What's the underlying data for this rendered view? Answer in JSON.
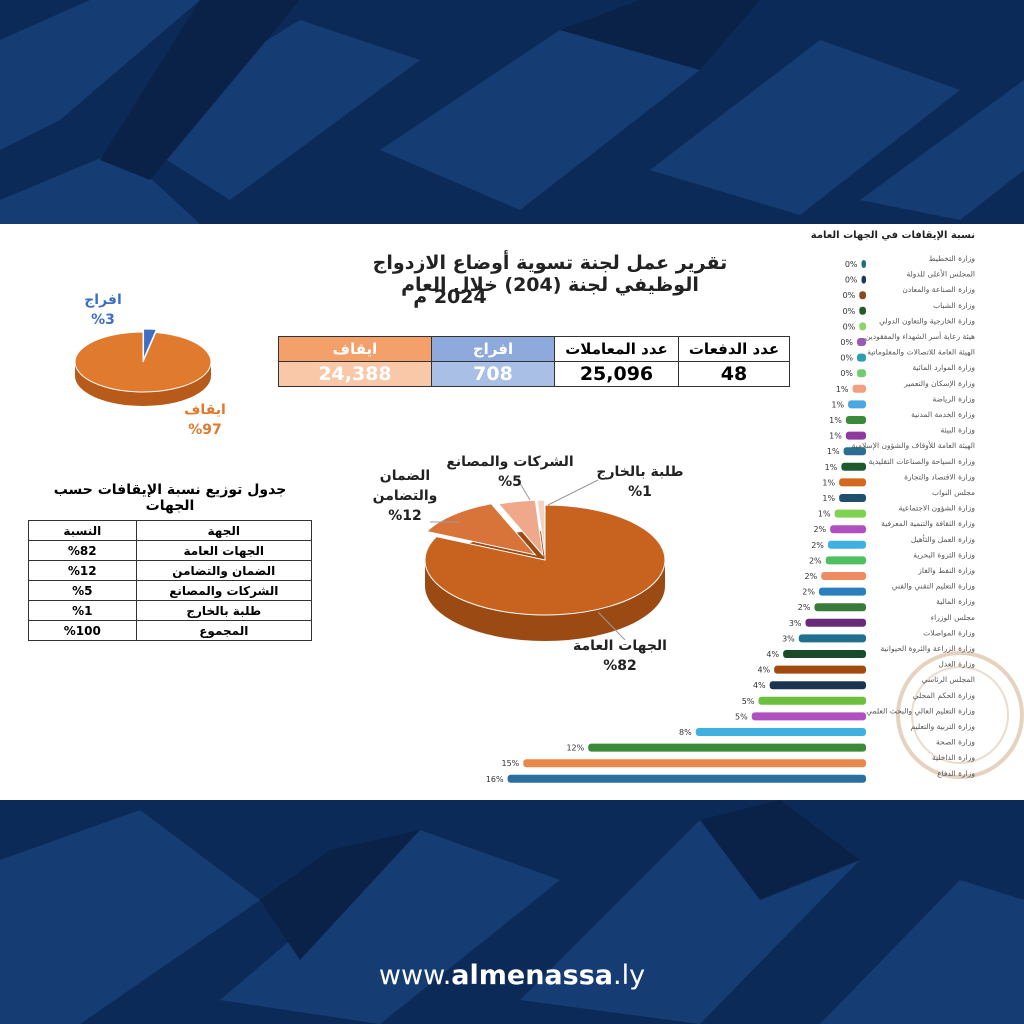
{
  "header": {
    "title_line1": "تقرير عمل لجنة تسوية أوضاع الازدواج الوظيفي لجنة (204) خلال العام",
    "title_line2": "2024 م"
  },
  "summary_table": {
    "headers": [
      "عدد الدفعات",
      "عدد المعاملات",
      "افراج",
      "ايقاف"
    ],
    "values": [
      "48",
      "25,096",
      "708",
      "24,388"
    ]
  },
  "distribution_table": {
    "title": "جدول توزيع نسبة الإيقافات حسب الجهات",
    "headers": [
      "الجهة",
      "النسبة"
    ],
    "rows": [
      [
        "الجهات العامة",
        "%82"
      ],
      [
        "الضمان والتضامن",
        "%12"
      ],
      [
        "الشركات والمصانع",
        "%5"
      ],
      [
        "طلبة بالخارج",
        "%1"
      ],
      [
        "المجموع",
        "%100"
      ]
    ]
  },
  "chart_data": [
    {
      "type": "pie",
      "categories": [
        "افراج",
        "ايقاف"
      ],
      "values": [
        3,
        97
      ],
      "value_labels": [
        "%3",
        "%97"
      ],
      "colors": [
        "#3f6fc4",
        "#e07a2e"
      ],
      "label_colors": [
        "#3f6fc4",
        "#e07a2e"
      ]
    },
    {
      "type": "pie",
      "categories": [
        "الجهات العامة",
        "الضمان والتضامن",
        "الشركات والمصانع",
        "طلبة بالخارج"
      ],
      "values": [
        82,
        12,
        5,
        1
      ],
      "value_labels": [
        "%82",
        "%12",
        "%5",
        "%1"
      ],
      "colors": [
        "#c8621f",
        "#d8743a",
        "#f0a88a",
        "#f6d2c0"
      ]
    },
    {
      "type": "bar",
      "orientation": "horizontal",
      "title": "نسبة الإيقافات في الجهات العامة",
      "categories": [
        "وزارة التخطيط",
        "المجلس الأعلى للدولة",
        "وزارة الصناعة والمعادن",
        "وزارة الشباب",
        "وزارة الخارجية والتعاون الدولي",
        "هيئة رعاية أسر الشهداء والمفقودين",
        "الهيئة العامة للاتصالات والمعلوماتية",
        "وزارة الموارد المائية",
        "وزارة الإسكان والتعمير",
        "وزارة الرياضة",
        "وزارة الخدمة المدنية",
        "وزارة البيئة",
        "الهيئة العامة للأوقاف والشؤون الإسلامية",
        "وزارة السياحة والصناعات التقليدية",
        "وزارة الاقتصاد والتجارة",
        "مجلس النواب",
        "وزارة الشؤون الاجتماعية",
        "وزارة الثقافة والتنمية المعرفية",
        "وزارة العمل والتأهيل",
        "وزارة الثروة البحرية",
        "وزارة النفط والغاز",
        "وزارة التعليم التقني والفني",
        "وزارة المالية",
        "مجلس الوزراء",
        "وزارة المواصلات",
        "وزارة الزراعة والثروة الحيوانية",
        "وزارة العدل",
        "المجلس الرئاسي",
        "وزارة الحكم المحلي",
        "وزارة التعليم العالي والبحث العلمي",
        "وزارة التربية والتعليم",
        "وزارة الصحة",
        "وزارة الداخلية",
        "وزارة الدفاع"
      ],
      "values": [
        0.2,
        0.2,
        0.3,
        0.3,
        0.3,
        0.4,
        0.4,
        0.4,
        0.6,
        0.8,
        0.9,
        0.9,
        1.0,
        1.1,
        1.2,
        1.2,
        1.4,
        1.6,
        1.7,
        1.8,
        2.0,
        2.1,
        2.3,
        2.7,
        3.0,
        3.7,
        4.1,
        4.3,
        4.8,
        5.1,
        7.6,
        12.4,
        15.3,
        16.0
      ],
      "value_labels": [
        "0%",
        "0%",
        "0%",
        "0%",
        "0%",
        "0%",
        "0%",
        "0%",
        "1%",
        "1%",
        "1%",
        "1%",
        "1%",
        "1%",
        "1%",
        "1%",
        "1%",
        "2%",
        "2%",
        "2%",
        "2%",
        "2%",
        "2%",
        "3%",
        "3%",
        "4%",
        "4%",
        "4%",
        "5%",
        "5%",
        "8%",
        "12%",
        "15%",
        "16%"
      ],
      "colors": [
        "#1f6f7f",
        "#1b3a5a",
        "#8a4a20",
        "#2a5a2a",
        "#8fd46a",
        "#9b59b6",
        "#2a9fb0",
        "#6fcf6f",
        "#f0a080",
        "#4aa8e0",
        "#3a8a3a",
        "#8e3a9e",
        "#2a6f8f",
        "#1e5a2e",
        "#d2691e",
        "#1f4f6f",
        "#7dd34f",
        "#b04fc0",
        "#3fb0e0",
        "#4fc05f",
        "#f08a60",
        "#2a7fbf",
        "#3a7a3a",
        "#6a2a7a",
        "#1f6f8f",
        "#1a4a2a",
        "#a04a10",
        "#1b3550",
        "#6fbf3f",
        "#b050c0",
        "#40b0e0",
        "#3a8a3a",
        "#e8884a",
        "#2a6f9f"
      ]
    }
  ],
  "footer": {
    "prefix": "www.",
    "brand": "almenassa",
    "suffix": ".ly"
  }
}
